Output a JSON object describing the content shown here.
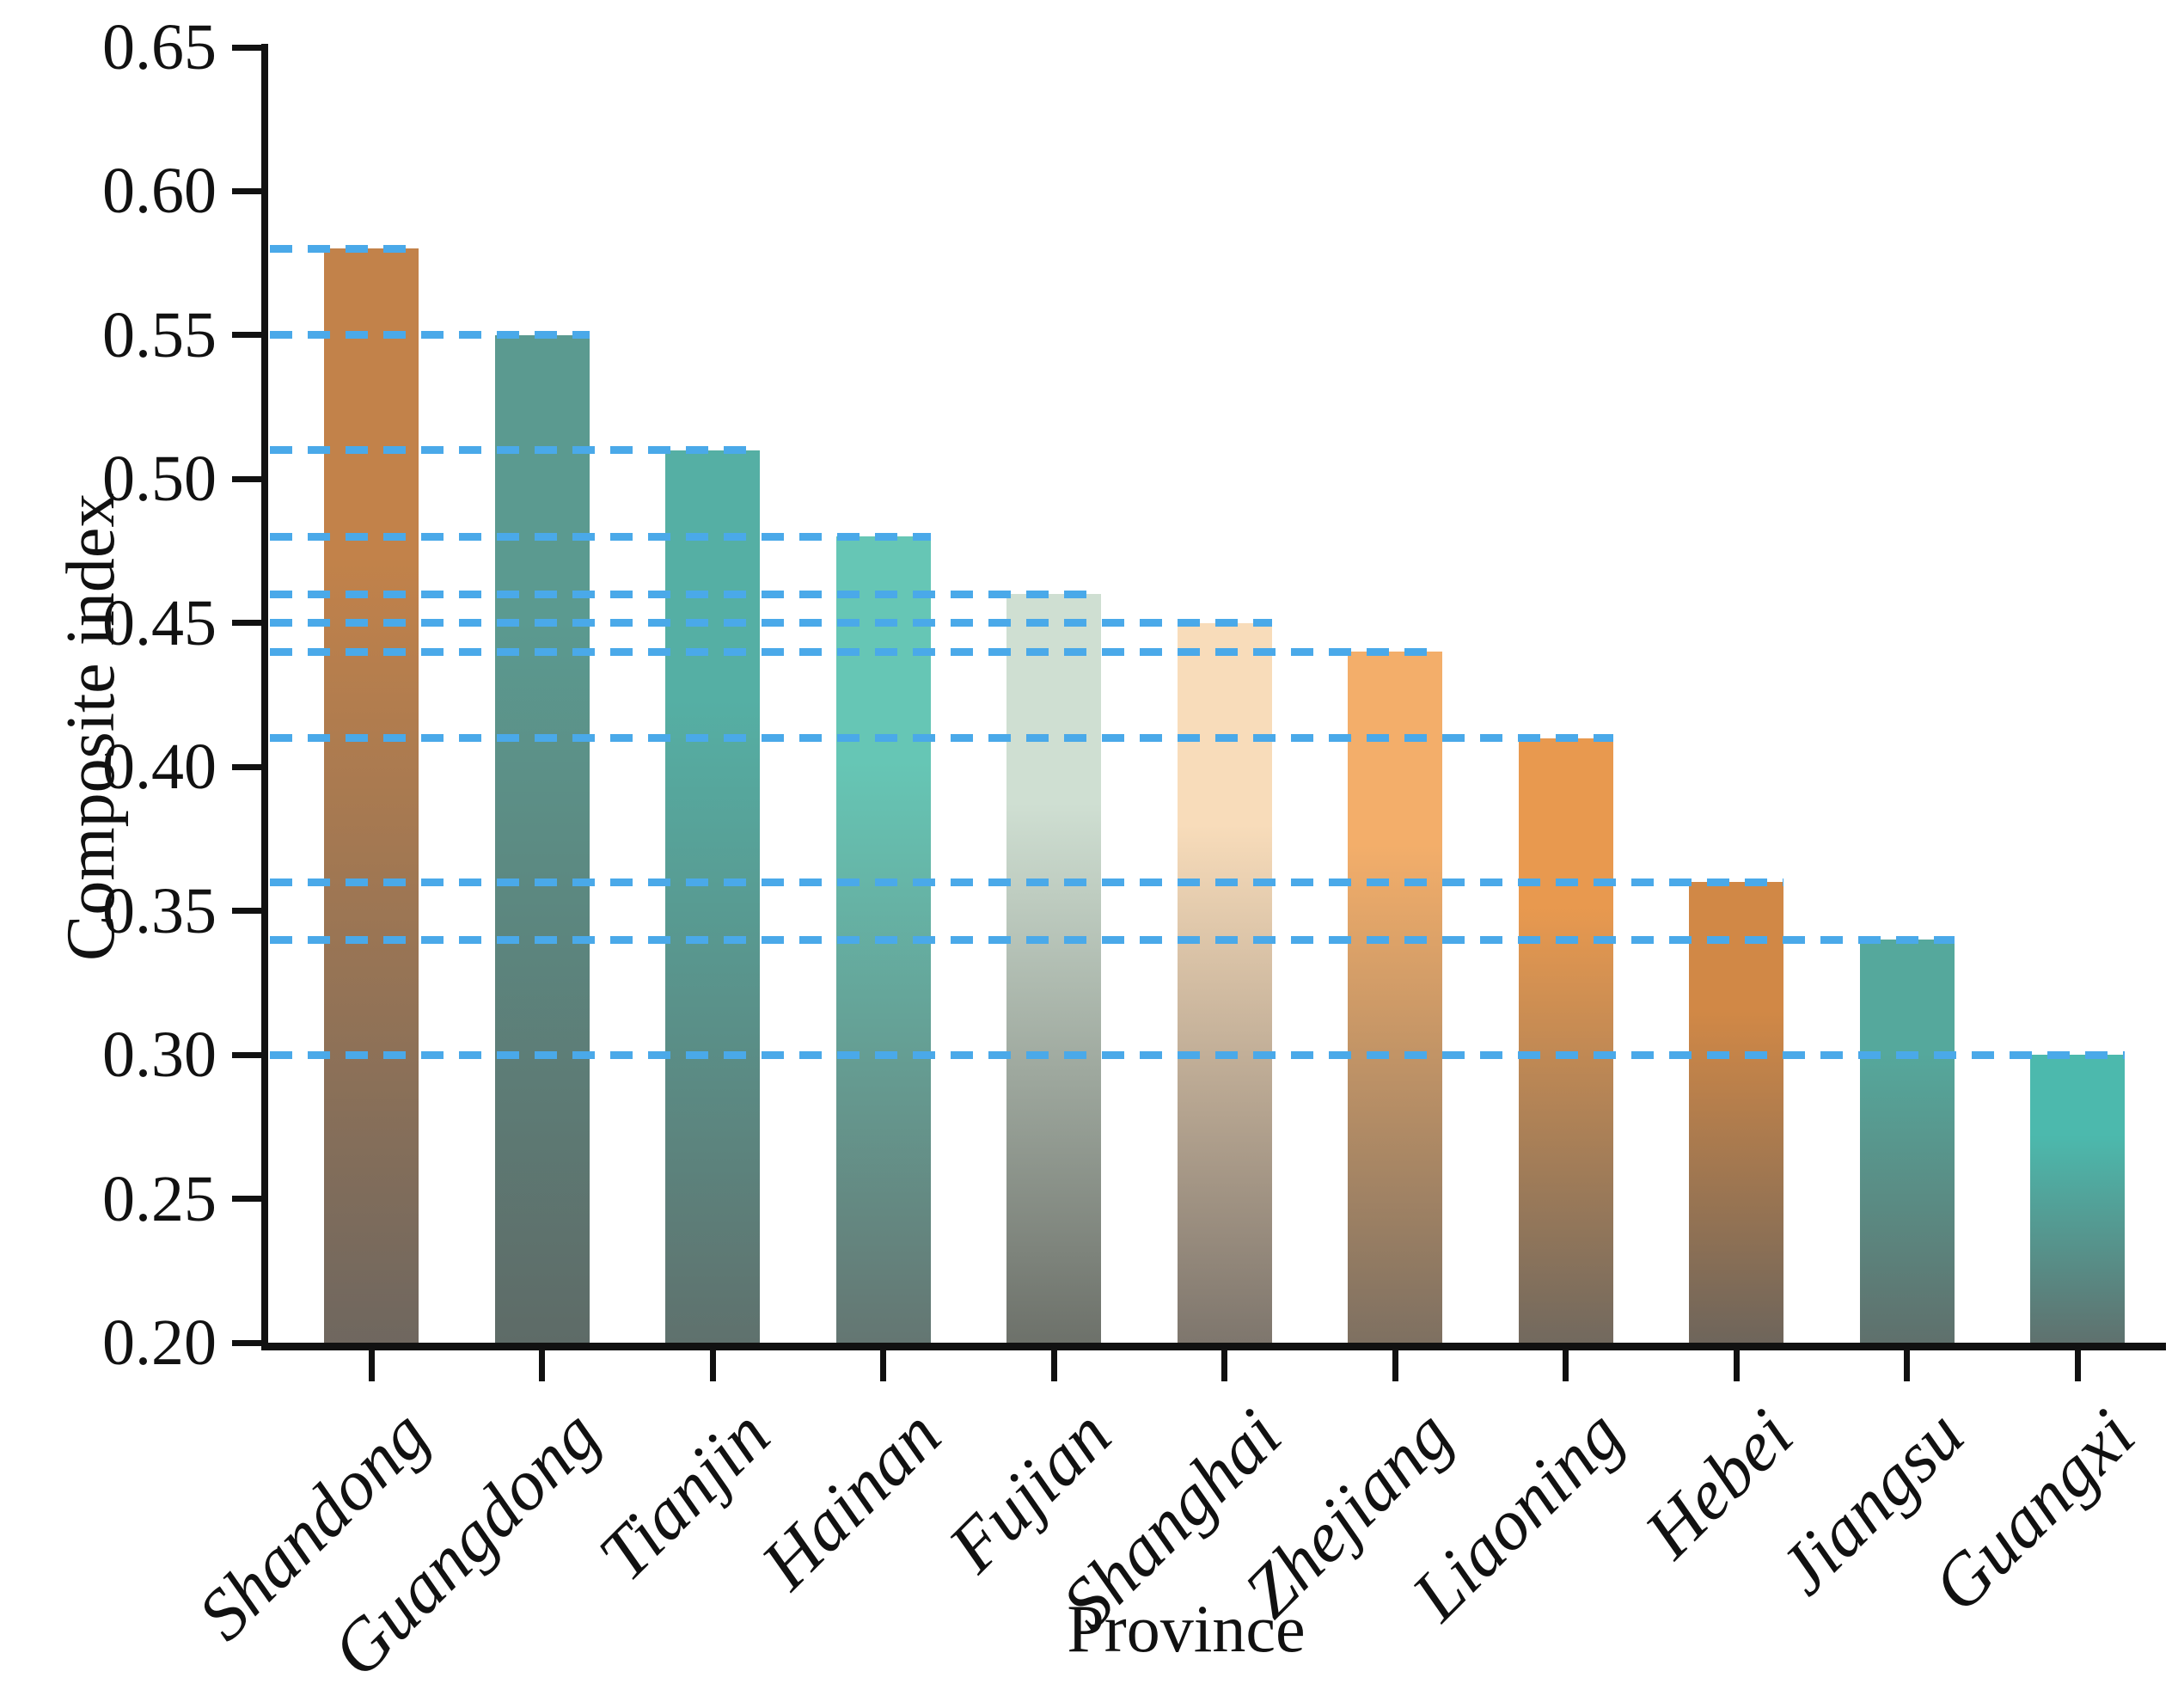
{
  "figure": {
    "background": "#ffffff",
    "axis_color": "#111111",
    "text_color": "#111111"
  },
  "chart_data": {
    "type": "bar",
    "title": "",
    "xlabel": "Province",
    "ylabel": "Composite index",
    "categories": [
      "Shandong",
      "Guangdong",
      "Tianjin",
      "Hainan",
      "Fujian",
      "Shanghai",
      "Zhejiang",
      "Liaoning",
      "Hebei",
      "Jiangsu",
      "Guangxi"
    ],
    "values": [
      0.58,
      0.55,
      0.51,
      0.48,
      0.46,
      0.45,
      0.44,
      0.41,
      0.36,
      0.34,
      0.3
    ],
    "ylim": [
      0.2,
      0.65
    ],
    "ytick_step": 0.05,
    "ytick_labels": [
      "0.20",
      "0.25",
      "0.30",
      "0.35",
      "0.40",
      "0.45",
      "0.50",
      "0.55",
      "0.60",
      "0.65"
    ],
    "grid": false,
    "legend": null,
    "guide_line_color": "#4aa9e9",
    "guide_line_style": "dashed",
    "bar_styles": [
      {
        "color_top": "#c2824a",
        "color_bottom": "#6f675f"
      },
      {
        "color_top": "#5b9a90",
        "color_bottom": "#5e6b67"
      },
      {
        "color_top": "#55afa4",
        "color_bottom": "#5f716d"
      },
      {
        "color_top": "#66c6b5",
        "color_bottom": "#647672"
      },
      {
        "color_top": "#cfdfd2",
        "color_bottom": "#6d716a"
      },
      {
        "color_top": "#f8dcba",
        "color_bottom": "#7e766d"
      },
      {
        "color_top": "#f3ae6a",
        "color_bottom": "#7e7061"
      },
      {
        "color_top": "#e8994f",
        "color_bottom": "#72695e"
      },
      {
        "color_top": "#d18846",
        "color_bottom": "#6e655b"
      },
      {
        "color_top": "#55a89c",
        "color_bottom": "#5f706c"
      },
      {
        "color_top": "#4cb9ad",
        "color_bottom": "#5f716e"
      }
    ]
  }
}
